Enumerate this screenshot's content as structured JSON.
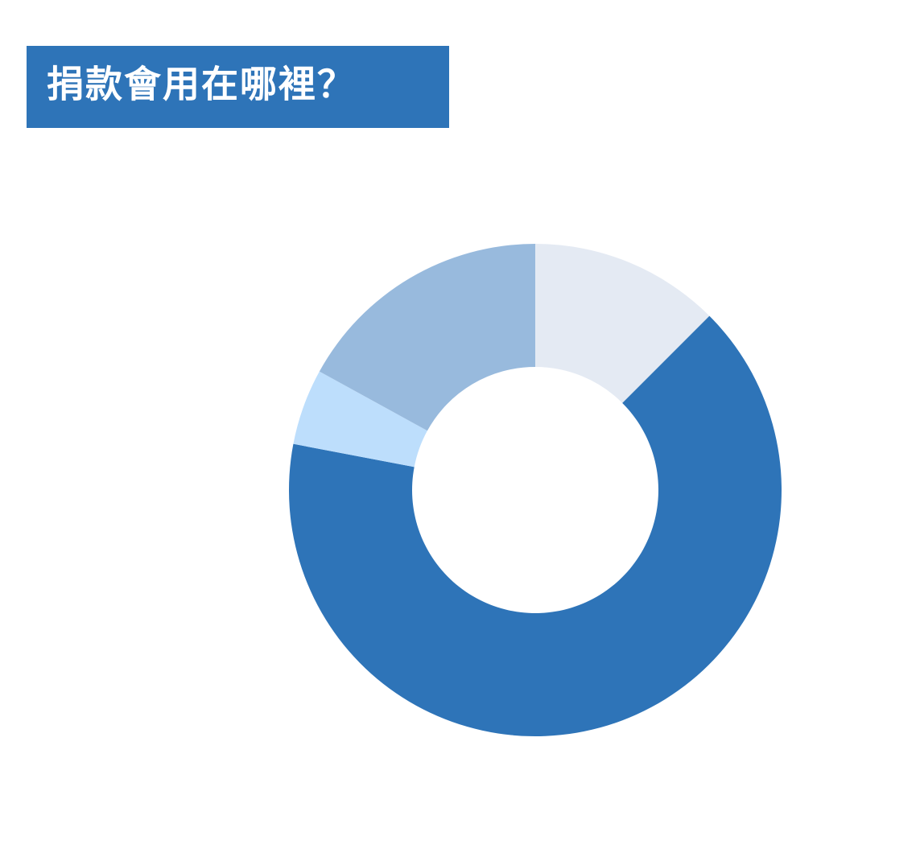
{
  "chart_data": {
    "type": "donut",
    "title": "捐款會用在哪裡？",
    "values": [
      12.5,
      65.5,
      5,
      17
    ],
    "colors": [
      "#e4eaf3",
      "#2e74b8",
      "#bddefc",
      "#98badd"
    ]
  }
}
